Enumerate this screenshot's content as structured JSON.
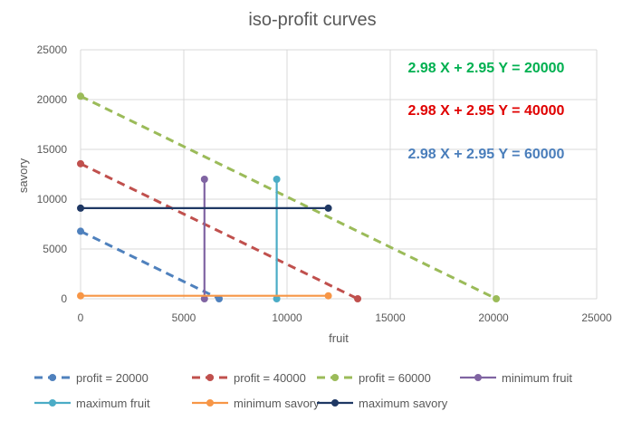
{
  "chart_data": {
    "type": "line",
    "title": "iso-profit curves",
    "xlabel": "fruit",
    "ylabel": "savory",
    "xlim": [
      0,
      25000
    ],
    "ylim": [
      0,
      25000
    ],
    "xticks": [
      "0",
      "5000",
      "10000",
      "15000",
      "20000",
      "25000"
    ],
    "yticks": [
      "0",
      "5000",
      "10000",
      "15000",
      "20000",
      "25000"
    ],
    "grid": true,
    "legend_position": "bottom",
    "annotations": [
      {
        "text": "2.98 X + 2.95 Y = 20000",
        "color": "#00B050"
      },
      {
        "text": "2.98 X + 2.95 Y = 40000",
        "color": "#E00000"
      },
      {
        "text": "2.98 X + 2.95 Y = 60000",
        "color": "#4A7EBB"
      }
    ],
    "series": [
      {
        "name": "profit = 20000",
        "color": "#4F81BD",
        "dashed": true,
        "points": [
          [
            0,
            6780
          ],
          [
            6711,
            0
          ]
        ]
      },
      {
        "name": "profit = 40000",
        "color": "#C0504D",
        "dashed": true,
        "points": [
          [
            0,
            13559
          ],
          [
            13423,
            0
          ]
        ]
      },
      {
        "name": "profit = 60000",
        "color": "#9BBB59",
        "dashed": true,
        "points": [
          [
            0,
            20339
          ],
          [
            20134,
            0
          ]
        ]
      },
      {
        "name": "minimum fruit",
        "color": "#8064A2",
        "dashed": false,
        "points": [
          [
            6000,
            0
          ],
          [
            6000,
            12000
          ]
        ]
      },
      {
        "name": "maximum fruit",
        "color": "#4BACC6",
        "dashed": false,
        "points": [
          [
            9500,
            0
          ],
          [
            9500,
            12000
          ]
        ]
      },
      {
        "name": "minimum savory",
        "color": "#F79646",
        "dashed": false,
        "points": [
          [
            0,
            300
          ],
          [
            12000,
            300
          ]
        ]
      },
      {
        "name": "maximum savory",
        "color": "#1F3864",
        "dashed": false,
        "points": [
          [
            0,
            9100
          ],
          [
            12000,
            9100
          ]
        ]
      }
    ]
  }
}
